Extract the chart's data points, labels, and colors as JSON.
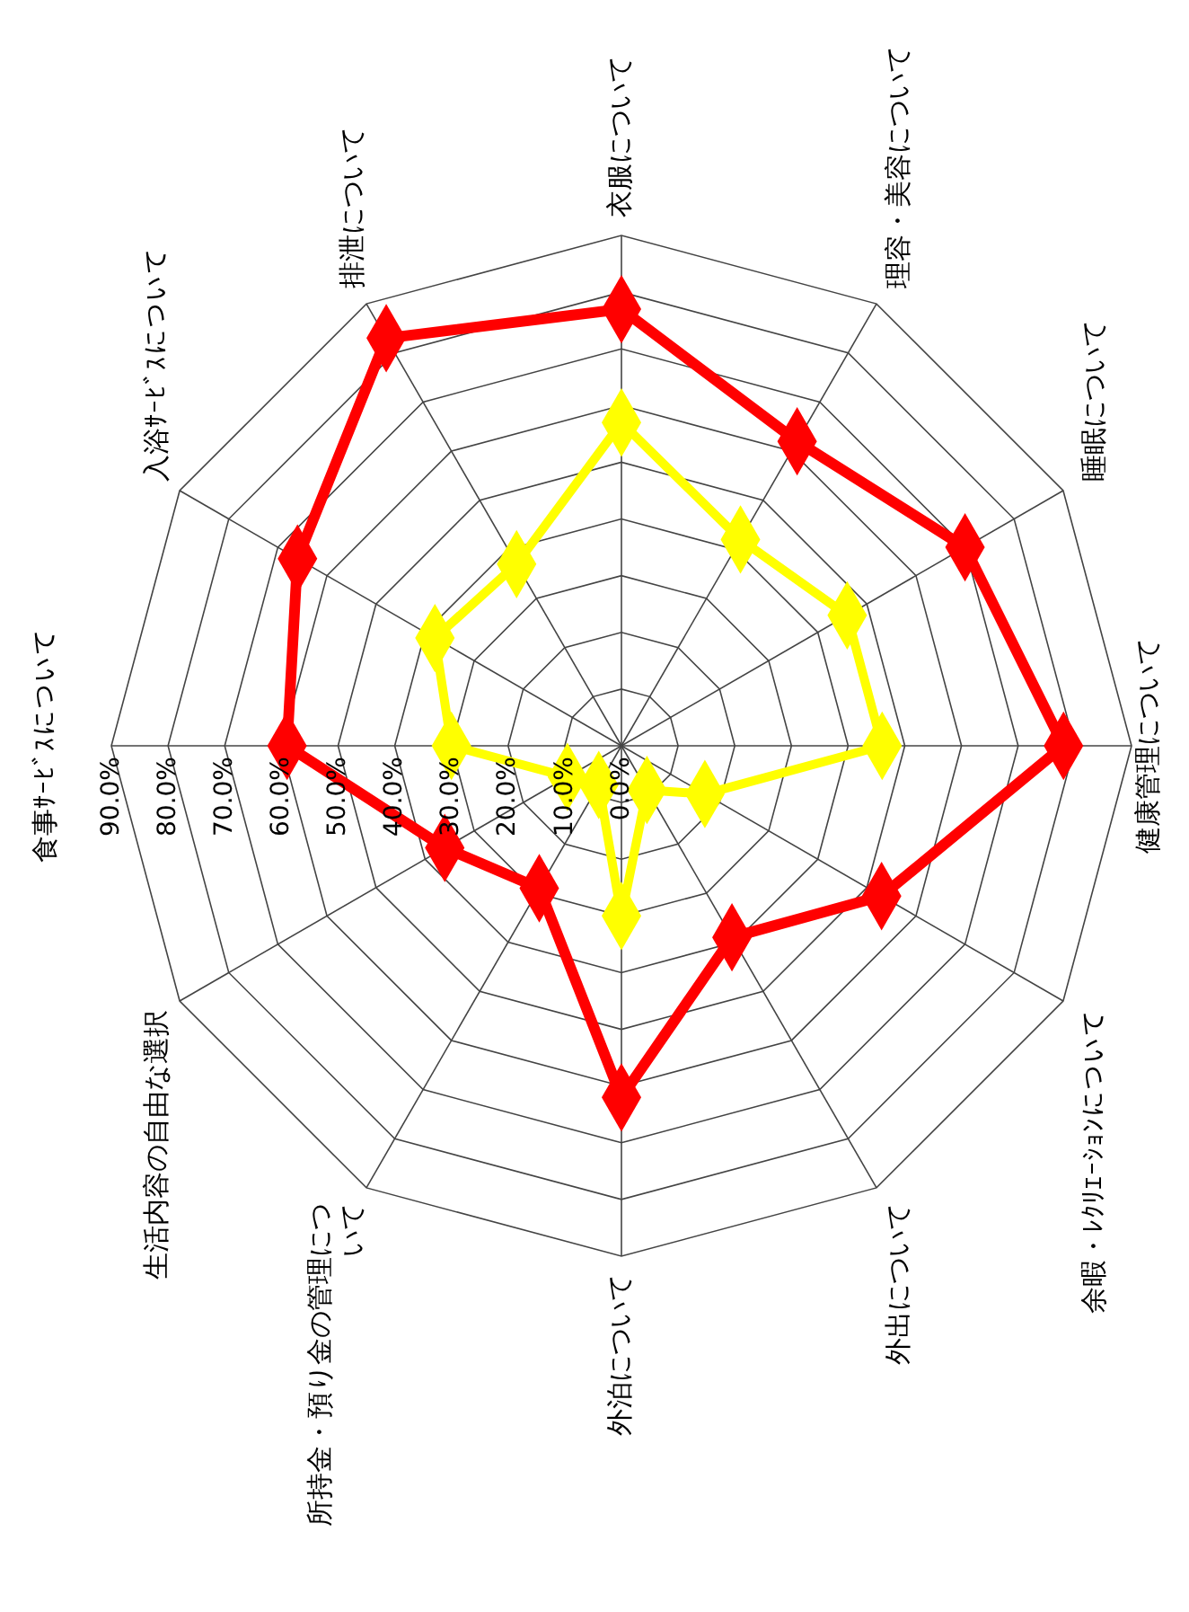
{
  "chart_data": {
    "type": "radar",
    "categories": [
      "食事ｻｰﾋﾞｽについて",
      "入浴ｻｰﾋﾞｽについて",
      "排泄について",
      "衣服について",
      "理容・美容について",
      "睡眠について",
      "健康管理について",
      "余暇・ﾚｸﾘｴｰｼｮﾝについて",
      "外出について",
      "外泊について",
      "所持金・預り金の管理について",
      "生活内容の自由な選択"
    ],
    "series": [
      {
        "color": "#ff0000",
        "values": [
          59,
          66,
          83,
          77,
          62,
          70,
          78,
          53,
          39,
          62,
          29,
          36
        ]
      },
      {
        "color": "#ffff00",
        "values": [
          30,
          38,
          37,
          57,
          42,
          46,
          46,
          17,
          9,
          30,
          8,
          11
        ]
      }
    ],
    "ylim": [
      0,
      90
    ],
    "yticks": [
      {
        "value": 0,
        "label": "0.0%"
      },
      {
        "value": 10,
        "label": "10.0%"
      },
      {
        "value": 20,
        "label": "20.0%"
      },
      {
        "value": 30,
        "label": "30.0%"
      },
      {
        "value": 40,
        "label": "40.0%"
      },
      {
        "value": 50,
        "label": "50.0%"
      },
      {
        "value": 60,
        "label": "60.0%"
      },
      {
        "value": 70,
        "label": "70.0%"
      },
      {
        "value": 80,
        "label": "80.0%"
      },
      {
        "value": 90,
        "label": "90.0%"
      }
    ],
    "grid": true,
    "marker": "diamond",
    "line_style": "solid"
  }
}
